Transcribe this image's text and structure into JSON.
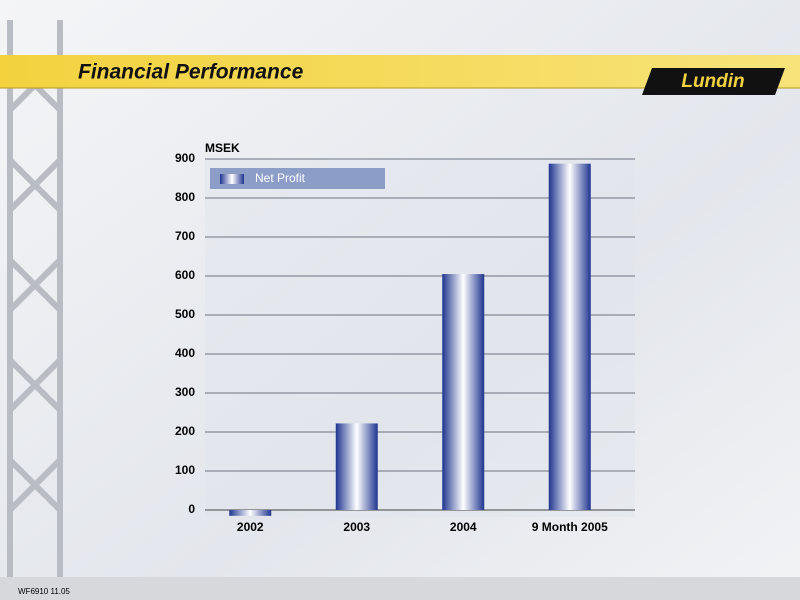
{
  "header": {
    "title": "Financial Performance",
    "logo": "Lundin"
  },
  "footer": "WF6910 11.05",
  "chart_data": {
    "type": "bar",
    "y_label": "MSEK",
    "categories": [
      "2002",
      "2003",
      "2004",
      "9 Month 2005"
    ],
    "series": [
      {
        "name": "Net Profit",
        "color": "#1f3590",
        "values": [
          -15,
          222,
          605,
          888
        ]
      }
    ],
    "ylim": [
      -20,
      900
    ],
    "yticks": [
      0,
      100,
      200,
      300,
      400,
      500,
      600,
      700,
      800,
      900
    ],
    "grid": true
  }
}
